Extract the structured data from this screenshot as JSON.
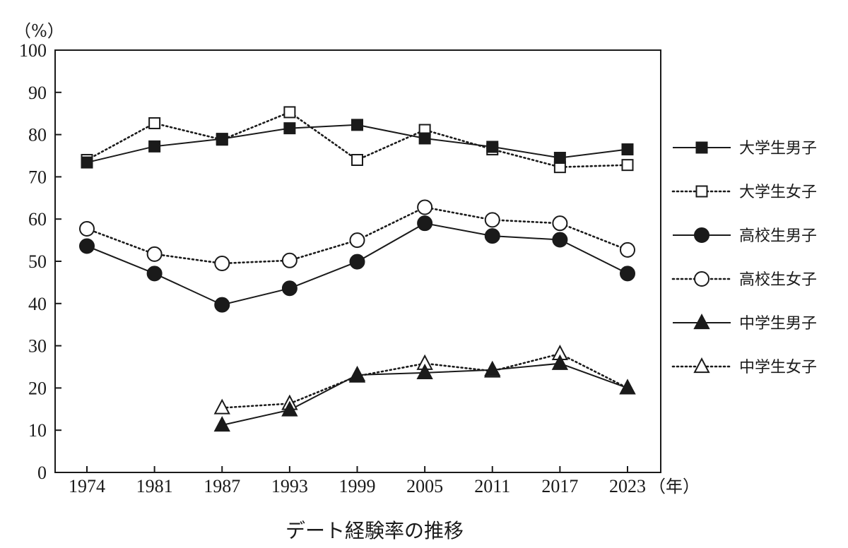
{
  "chart_data": {
    "type": "line",
    "title": "デート経験率の推移",
    "y_unit_label": "（%）",
    "x_unit_label": "（年）",
    "categories": [
      "1974",
      "1981",
      "1987",
      "1993",
      "1999",
      "2005",
      "2011",
      "2017",
      "2023"
    ],
    "ylim": [
      0,
      100
    ],
    "yticks": [
      0,
      10,
      20,
      30,
      40,
      50,
      60,
      70,
      80,
      90,
      100
    ],
    "grid": false,
    "legend_position": "right",
    "series": [
      {
        "name": "大学生男子",
        "marker": "square",
        "filled": true,
        "line": "solid",
        "values": [
          73.4,
          77.2,
          79.0,
          81.5,
          82.3,
          79.1,
          77.1,
          74.5,
          76.5
        ]
      },
      {
        "name": "大学生女子",
        "marker": "square",
        "filled": false,
        "line": "dotted",
        "values": [
          74.0,
          82.7,
          78.8,
          85.3,
          74.0,
          81.1,
          76.5,
          72.3,
          72.8
        ]
      },
      {
        "name": "高校生男子",
        "marker": "circle",
        "filled": true,
        "line": "solid",
        "values": [
          53.6,
          47.1,
          39.7,
          43.6,
          49.9,
          59.0,
          56.0,
          55.1,
          47.1
        ]
      },
      {
        "name": "高校生女子",
        "marker": "circle",
        "filled": false,
        "line": "dotted",
        "values": [
          57.7,
          51.7,
          49.5,
          50.2,
          55.0,
          62.8,
          59.8,
          59.0,
          52.7
        ]
      },
      {
        "name": "中学生男子",
        "marker": "triangle",
        "filled": true,
        "line": "solid",
        "values": [
          null,
          null,
          11.2,
          14.8,
          23.1,
          23.6,
          24.3,
          25.8,
          20.0
        ]
      },
      {
        "name": "中学生女子",
        "marker": "triangle",
        "filled": false,
        "line": "dotted",
        "values": [
          null,
          null,
          15.3,
          16.3,
          22.8,
          25.8,
          24.0,
          28.1,
          20.0
        ]
      }
    ]
  }
}
